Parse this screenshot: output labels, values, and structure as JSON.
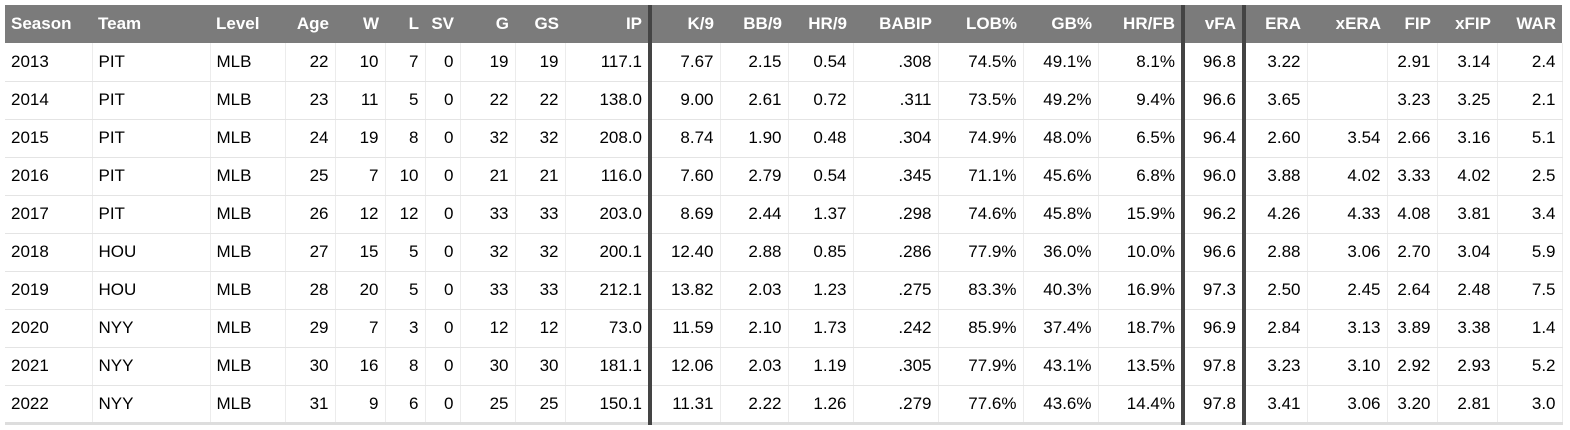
{
  "table": {
    "headers": [
      "Season",
      "Team",
      "Level",
      "Age",
      "W",
      "L",
      "SV",
      "G",
      "GS",
      "IP",
      "K/9",
      "BB/9",
      "HR/9",
      "BABIP",
      "LOB%",
      "GB%",
      "HR/FB",
      "vFA",
      "ERA",
      "xERA",
      "FIP",
      "xFIP",
      "WAR"
    ],
    "rows": [
      [
        "2013",
        "PIT",
        "MLB",
        "22",
        "10",
        "7",
        "0",
        "19",
        "19",
        "117.1",
        "7.67",
        "2.15",
        "0.54",
        ".308",
        "74.5%",
        "49.1%",
        "8.1%",
        "96.8",
        "3.22",
        null,
        "2.91",
        "3.14",
        "2.4"
      ],
      [
        "2014",
        "PIT",
        "MLB",
        "23",
        "11",
        "5",
        "0",
        "22",
        "22",
        "138.0",
        "9.00",
        "2.61",
        "0.72",
        ".311",
        "73.5%",
        "49.2%",
        "9.4%",
        "96.6",
        "3.65",
        null,
        "3.23",
        "3.25",
        "2.1"
      ],
      [
        "2015",
        "PIT",
        "MLB",
        "24",
        "19",
        "8",
        "0",
        "32",
        "32",
        "208.0",
        "8.74",
        "1.90",
        "0.48",
        ".304",
        "74.9%",
        "48.0%",
        "6.5%",
        "96.4",
        "2.60",
        "3.54",
        "2.66",
        "3.16",
        "5.1"
      ],
      [
        "2016",
        "PIT",
        "MLB",
        "25",
        "7",
        "10",
        "0",
        "21",
        "21",
        "116.0",
        "7.60",
        "2.79",
        "0.54",
        ".345",
        "71.1%",
        "45.6%",
        "6.8%",
        "96.0",
        "3.88",
        "4.02",
        "3.33",
        "4.02",
        "2.5"
      ],
      [
        "2017",
        "PIT",
        "MLB",
        "26",
        "12",
        "12",
        "0",
        "33",
        "33",
        "203.0",
        "8.69",
        "2.44",
        "1.37",
        ".298",
        "74.6%",
        "45.8%",
        "15.9%",
        "96.2",
        "4.26",
        "4.33",
        "4.08",
        "3.81",
        "3.4"
      ],
      [
        "2018",
        "HOU",
        "MLB",
        "27",
        "15",
        "5",
        "0",
        "32",
        "32",
        "200.1",
        "12.40",
        "2.88",
        "0.85",
        ".286",
        "77.9%",
        "36.0%",
        "10.0%",
        "96.6",
        "2.88",
        "3.06",
        "2.70",
        "3.04",
        "5.9"
      ],
      [
        "2019",
        "HOU",
        "MLB",
        "28",
        "20",
        "5",
        "0",
        "33",
        "33",
        "212.1",
        "13.82",
        "2.03",
        "1.23",
        ".275",
        "83.3%",
        "40.3%",
        "16.9%",
        "97.3",
        "2.50",
        "2.45",
        "2.64",
        "2.48",
        "7.5"
      ],
      [
        "2020",
        "NYY",
        "MLB",
        "29",
        "7",
        "3",
        "0",
        "12",
        "12",
        "73.0",
        "11.59",
        "2.10",
        "1.73",
        ".242",
        "85.9%",
        "37.4%",
        "18.7%",
        "96.9",
        "2.84",
        "3.13",
        "3.89",
        "3.38",
        "1.4"
      ],
      [
        "2021",
        "NYY",
        "MLB",
        "30",
        "16",
        "8",
        "0",
        "30",
        "30",
        "181.1",
        "12.06",
        "2.03",
        "1.19",
        ".305",
        "77.9%",
        "43.1%",
        "13.5%",
        "97.8",
        "3.23",
        "3.10",
        "2.92",
        "2.93",
        "5.2"
      ],
      [
        "2022",
        "NYY",
        "MLB",
        "31",
        "9",
        "6",
        "0",
        "25",
        "25",
        "150.1",
        "11.31",
        "2.22",
        "1.26",
        ".279",
        "77.6%",
        "43.6%",
        "14.4%",
        "97.8",
        "3.41",
        "3.06",
        "3.20",
        "2.81",
        "3.0"
      ]
    ]
  }
}
